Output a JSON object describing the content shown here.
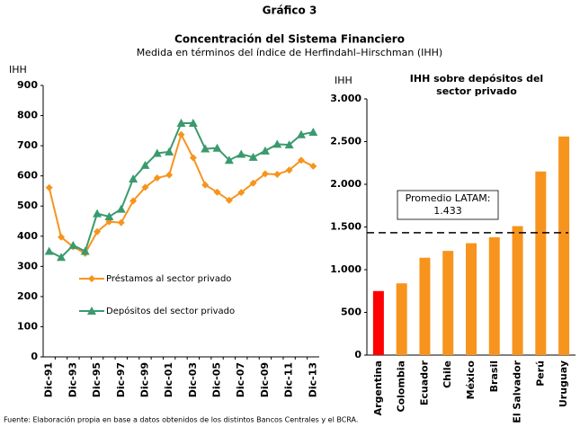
{
  "header": {
    "title": "Gráfico 3",
    "subtitle": "Concentración del Sistema Financiero",
    "note": "Medida en términos del índice de Herfindahl–Hirschman (IHH)",
    "source": "Fuente: Elaboración propia en base a datos obtenidos de los distintos Bancos Centrales y el BCRA."
  },
  "chart_data": [
    {
      "type": "line",
      "ylabel": "IHH",
      "categories": [
        "Dic-91",
        null,
        "Dic-93",
        null,
        "Dic-95",
        null,
        "Dic-97",
        null,
        "Dic-99",
        null,
        "Dic-01",
        null,
        "Dic-03",
        null,
        "Dic-05",
        null,
        "Dic-07",
        null,
        "Dic-09",
        null,
        "Dic-11",
        null,
        "Dic-13"
      ],
      "series": [
        {
          "name": "Préstamos al sector privado",
          "color": "#f7941d",
          "marker": "diamond",
          "values": [
            561,
            397,
            365,
            343,
            415,
            448,
            445,
            517,
            562,
            593,
            603,
            737,
            660,
            570,
            546,
            519,
            545,
            576,
            607,
            605,
            619,
            652,
            632
          ]
        },
        {
          "name": "Depósitos del sector privado",
          "color": "#3a9a6e",
          "marker": "triangle",
          "values": [
            350,
            330,
            370,
            350,
            475,
            465,
            490,
            590,
            635,
            675,
            680,
            775,
            775,
            690,
            692,
            652,
            672,
            662,
            683,
            705,
            703,
            737,
            745
          ]
        }
      ],
      "ylim": [
        0,
        900
      ],
      "yticks": [
        0,
        100,
        200,
        300,
        400,
        500,
        600,
        700,
        800,
        900
      ],
      "grid": false
    },
    {
      "type": "bar",
      "title": "IHH sobre depósitos del sector privado",
      "ylabel": "IHH",
      "categories": [
        "Argentina",
        "Colombia",
        "Ecuador",
        "Chile",
        "México",
        "Brasil",
        "El Salvador",
        "Perú",
        "Uruguay"
      ],
      "values": [
        750,
        840,
        1140,
        1220,
        1310,
        1380,
        1510,
        2150,
        2560
      ],
      "colors": [
        "#ff0000",
        "#f7941d",
        "#f7941d",
        "#f7941d",
        "#f7941d",
        "#f7941d",
        "#f7941d",
        "#f7941d",
        "#f7941d"
      ],
      "reference": {
        "value": 1433,
        "label": "Promedio LATAM:",
        "value_label": "1.433"
      },
      "ylim": [
        0,
        3000
      ],
      "yticks": [
        0,
        500,
        {
          "value": 1000,
          "label": "1.000"
        },
        {
          "value": 1500,
          "label": "1.500"
        },
        {
          "value": 2000,
          "label": "2.000"
        },
        {
          "value": 2500,
          "label": "2.500"
        },
        {
          "value": 3000,
          "label": "3.000"
        }
      ],
      "grid": false
    }
  ]
}
